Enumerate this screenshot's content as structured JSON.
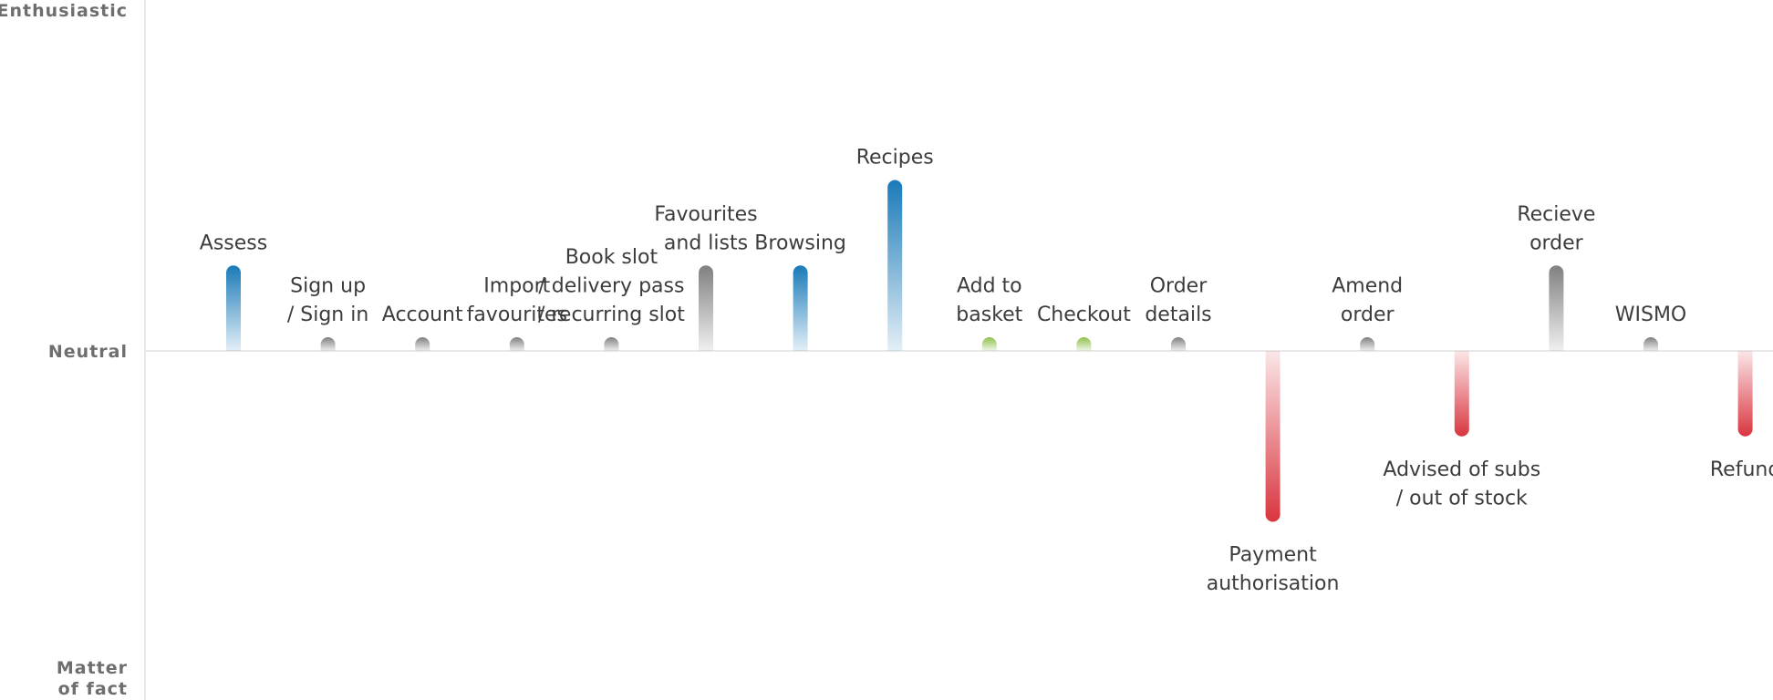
{
  "chart_data": {
    "type": "bar",
    "y_axis_labels": {
      "top": "Enthusiastic",
      "middle": "Neutral",
      "bottom": [
        "Matter",
        "of fact"
      ]
    },
    "ylim": [
      -1,
      1
    ],
    "grid": false,
    "colors": {
      "enthusiastic": "#1a7ab8",
      "neutral": "#808080",
      "positive_small": "#8fc04a",
      "negative": "#d9353f"
    },
    "categories": [
      {
        "label": [
          "Assess"
        ],
        "value": 0.25,
        "color": "enthusiastic"
      },
      {
        "label": [
          "Sign up",
          "/ Sign in"
        ],
        "value": 0.04,
        "color": "neutral"
      },
      {
        "label": [
          "Account"
        ],
        "value": 0.04,
        "color": "neutral"
      },
      {
        "label": [
          "Import",
          "favourites"
        ],
        "value": 0.04,
        "color": "neutral"
      },
      {
        "label": [
          "Book slot",
          "/ delivery pass",
          "/ recurring slot"
        ],
        "value": 0.04,
        "color": "neutral"
      },
      {
        "label": [
          "Favourites",
          "and lists"
        ],
        "value": 0.25,
        "color": "neutral"
      },
      {
        "label": [
          "Browsing"
        ],
        "value": 0.25,
        "color": "enthusiastic"
      },
      {
        "label": [
          "Recipes"
        ],
        "value": 0.5,
        "color": "enthusiastic"
      },
      {
        "label": [
          "Add to",
          "basket"
        ],
        "value": 0.04,
        "color": "positive_small"
      },
      {
        "label": [
          "Checkout"
        ],
        "value": 0.04,
        "color": "positive_small"
      },
      {
        "label": [
          "Order",
          "details"
        ],
        "value": 0.04,
        "color": "neutral"
      },
      {
        "label": [
          "Payment",
          "authorisation"
        ],
        "value": -0.5,
        "color": "negative"
      },
      {
        "label": [
          "Amend",
          "order"
        ],
        "value": 0.04,
        "color": "neutral"
      },
      {
        "label": [
          "Advised of subs",
          "/ out of stock"
        ],
        "value": -0.25,
        "color": "negative"
      },
      {
        "label": [
          "Recieve",
          "order"
        ],
        "value": 0.25,
        "color": "neutral"
      },
      {
        "label": [
          "WISMO"
        ],
        "value": 0.04,
        "color": "neutral"
      },
      {
        "label": [
          "Refund"
        ],
        "value": -0.25,
        "color": "negative"
      }
    ]
  }
}
